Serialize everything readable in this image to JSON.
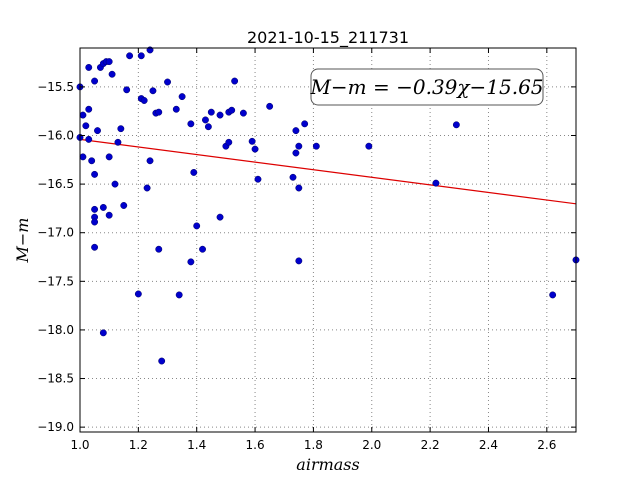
{
  "chart_data": {
    "type": "scatter",
    "title": "2021-10-15_211731",
    "xlabel": "airmass",
    "ylabel": "M−m",
    "xlim": [
      1.0,
      2.7
    ],
    "ylim": [
      -19.05,
      -15.1
    ],
    "xticks": [
      1.0,
      1.2,
      1.4,
      1.6,
      1.8,
      2.0,
      2.2,
      2.4,
      2.6
    ],
    "xtick_labels": [
      "1.0",
      "1.2",
      "1.4",
      "1.6",
      "1.8",
      "2.0",
      "2.2",
      "2.4",
      "2.6"
    ],
    "yticks": [
      -15.5,
      -16.0,
      -16.5,
      -17.0,
      -17.5,
      -18.0,
      -18.5,
      -19.0
    ],
    "ytick_labels": [
      "−15.5",
      "−16.0",
      "−16.5",
      "−17.0",
      "−17.5",
      "−18.0",
      "−18.5",
      "−19.0"
    ],
    "grid": true,
    "annotation": "M−m = −0.39χ−15.65",
    "fit_line": {
      "slope": -0.39,
      "intercept": -15.65,
      "color": "#dd0000"
    },
    "marker_color": "#0000cc",
    "points": [
      [
        1.0,
        -15.5
      ],
      [
        1.0,
        -16.02
      ],
      [
        1.01,
        -15.79
      ],
      [
        1.01,
        -16.22
      ],
      [
        1.02,
        -15.9
      ],
      [
        1.03,
        -15.73
      ],
      [
        1.03,
        -15.3
      ],
      [
        1.03,
        -16.04
      ],
      [
        1.04,
        -16.26
      ],
      [
        1.05,
        -15.44
      ],
      [
        1.05,
        -16.4
      ],
      [
        1.05,
        -16.76
      ],
      [
        1.05,
        -16.84
      ],
      [
        1.05,
        -16.89
      ],
      [
        1.05,
        -17.15
      ],
      [
        1.06,
        -15.95
      ],
      [
        1.07,
        -15.3
      ],
      [
        1.08,
        -15.26
      ],
      [
        1.08,
        -16.74
      ],
      [
        1.08,
        -18.03
      ],
      [
        1.09,
        -15.24
      ],
      [
        1.1,
        -15.24
      ],
      [
        1.1,
        -16.22
      ],
      [
        1.1,
        -16.82
      ],
      [
        1.11,
        -15.37
      ],
      [
        1.12,
        -16.5
      ],
      [
        1.13,
        -16.07
      ],
      [
        1.14,
        -15.93
      ],
      [
        1.15,
        -16.72
      ],
      [
        1.16,
        -15.53
      ],
      [
        1.17,
        -15.18
      ],
      [
        1.2,
        -17.63
      ],
      [
        1.21,
        -15.62
      ],
      [
        1.21,
        -15.18
      ],
      [
        1.22,
        -15.64
      ],
      [
        1.23,
        -16.54
      ],
      [
        1.24,
        -16.26
      ],
      [
        1.24,
        -15.12
      ],
      [
        1.25,
        -15.54
      ],
      [
        1.26,
        -15.77
      ],
      [
        1.27,
        -15.76
      ],
      [
        1.27,
        -17.17
      ],
      [
        1.28,
        -18.32
      ],
      [
        1.3,
        -15.45
      ],
      [
        1.33,
        -15.73
      ],
      [
        1.34,
        -17.64
      ],
      [
        1.35,
        -15.6
      ],
      [
        1.38,
        -17.3
      ],
      [
        1.38,
        -15.88
      ],
      [
        1.39,
        -16.38
      ],
      [
        1.4,
        -16.93
      ],
      [
        1.42,
        -17.17
      ],
      [
        1.43,
        -15.84
      ],
      [
        1.44,
        -15.91
      ],
      [
        1.45,
        -15.76
      ],
      [
        1.48,
        -15.79
      ],
      [
        1.48,
        -16.84
      ],
      [
        1.5,
        -16.11
      ],
      [
        1.51,
        -15.76
      ],
      [
        1.51,
        -16.07
      ],
      [
        1.52,
        -15.74
      ],
      [
        1.53,
        -15.44
      ],
      [
        1.56,
        -15.77
      ],
      [
        1.59,
        -16.06
      ],
      [
        1.6,
        -16.14
      ],
      [
        1.61,
        -16.45
      ],
      [
        1.65,
        -15.7
      ],
      [
        1.73,
        -16.43
      ],
      [
        1.74,
        -16.18
      ],
      [
        1.74,
        -15.95
      ],
      [
        1.75,
        -16.11
      ],
      [
        1.75,
        -16.54
      ],
      [
        1.75,
        -17.29
      ],
      [
        1.77,
        -15.88
      ],
      [
        1.81,
        -16.11
      ],
      [
        1.99,
        -16.11
      ],
      [
        2.22,
        -16.49
      ],
      [
        2.29,
        -15.89
      ],
      [
        2.62,
        -17.64
      ],
      [
        2.7,
        -17.28
      ]
    ]
  }
}
